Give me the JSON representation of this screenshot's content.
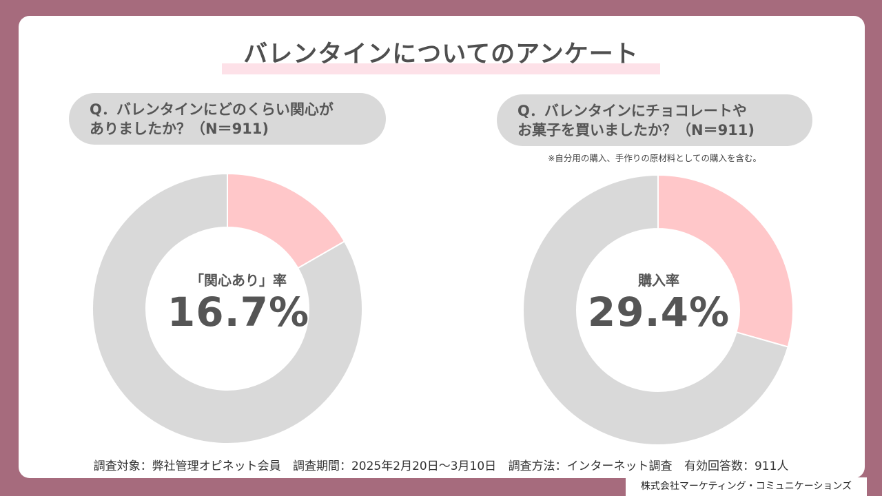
{
  "title": "バレンタインについてのアンケート",
  "colors": {
    "background": "#a66b7d",
    "highlight": "#ffc7c9",
    "remainder": "#d9d9d9",
    "title_underline": "#fde1e8"
  },
  "questions": {
    "left": {
      "line1": "Q．バレンタインにどのくらい関心が",
      "line2": "ありましたか？（N＝911)"
    },
    "right": {
      "line1": "Q．バレンタインにチョコレートや",
      "line2": "お菓子を買いましたか？（N＝911)",
      "note": "※自分用の購入、手作りの原材料としての購入を含む。"
    }
  },
  "chart_data": [
    {
      "type": "pie",
      "center_label": "「関心あり」率",
      "center_value": "16.7%",
      "values": [
        16.7,
        83.3
      ],
      "colors": [
        "#ffc7c9",
        "#d9d9d9"
      ]
    },
    {
      "type": "pie",
      "center_label": "購入率",
      "center_value": "29.4%",
      "values": [
        29.4,
        70.6
      ],
      "colors": [
        "#ffc7c9",
        "#d9d9d9"
      ]
    }
  ],
  "footer": {
    "subject": "調査対象：弊社管理オピネット会員",
    "period": "調査期間：2025年2月20日～3月10日",
    "method": "調査方法：インターネット調査",
    "responses": "有効回答数：911人"
  },
  "company": "株式会社マーケティング・コミュニケーションズ"
}
